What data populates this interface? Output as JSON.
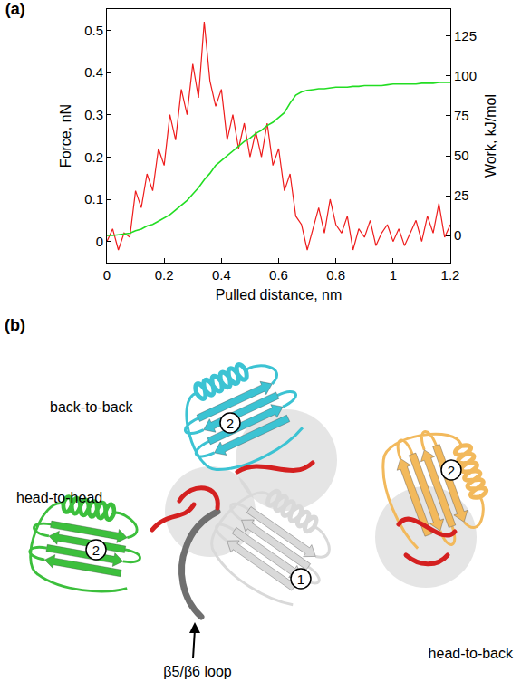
{
  "chart_data": {
    "type": "line",
    "title": "(a)",
    "xlabel": "Pulled distance, nm",
    "x": [
      0,
      0.02,
      0.04,
      0.06,
      0.08,
      0.1,
      0.12,
      0.14,
      0.16,
      0.18,
      0.2,
      0.22,
      0.24,
      0.26,
      0.28,
      0.3,
      0.32,
      0.34,
      0.36,
      0.38,
      0.4,
      0.42,
      0.44,
      0.46,
      0.48,
      0.5,
      0.52,
      0.54,
      0.56,
      0.58,
      0.6,
      0.62,
      0.64,
      0.66,
      0.68,
      0.7,
      0.72,
      0.74,
      0.76,
      0.78,
      0.8,
      0.82,
      0.84,
      0.86,
      0.88,
      0.9,
      0.92,
      0.94,
      0.96,
      0.98,
      1,
      1.02,
      1.04,
      1.06,
      1.08,
      1.1,
      1.12,
      1.14,
      1.16,
      1.18,
      1.2
    ],
    "xlim": [
      0,
      1.2
    ],
    "xticks": [
      0,
      0.2,
      0.4,
      0.6,
      0.8,
      1,
      1.2
    ],
    "ylim": [
      -0.05,
      0.55
    ],
    "yticks": [
      0,
      0.1,
      0.2,
      0.3,
      0.4,
      0.5
    ],
    "y2lim": [
      -17,
      142
    ],
    "y2ticks": [
      0,
      25,
      50,
      75,
      100,
      125
    ],
    "grid": false,
    "series": [
      {
        "name": "Force, nN",
        "color": "#ee1c1c",
        "axis": "y",
        "values": [
          0,
          0.03,
          -0.02,
          0.02,
          0.01,
          0.12,
          0.08,
          0.16,
          0.12,
          0.22,
          0.18,
          0.3,
          0.24,
          0.36,
          0.3,
          0.42,
          0.34,
          0.52,
          0.38,
          0.32,
          0.36,
          0.24,
          0.3,
          0.22,
          0.28,
          0.2,
          0.26,
          0.2,
          0.28,
          0.18,
          0.22,
          0.12,
          0.16,
          0.06,
          0.04,
          -0.02,
          0.03,
          0.08,
          0.02,
          0.1,
          0.04,
          0.02,
          0.06,
          -0.02,
          0.03,
          0.01,
          0.05,
          -0.01,
          0.02,
          0.04,
          0,
          0.03,
          -0.01,
          0.02,
          0.05,
          0,
          0.06,
          0.02,
          0.09,
          0.01,
          0.04
        ]
      },
      {
        "name": "Work, kJ/mol",
        "color": "#22dd22",
        "axis": "y2",
        "values": [
          0,
          0,
          0.5,
          1,
          1.5,
          3,
          4,
          6,
          7,
          9,
          11,
          13,
          16,
          19,
          22,
          26,
          30,
          35,
          39,
          44,
          47,
          50,
          53,
          56,
          59,
          61,
          64,
          66,
          69,
          71,
          74,
          77,
          83,
          88,
          90,
          91,
          91.5,
          92,
          92,
          92.5,
          93,
          93,
          93,
          93.5,
          93.5,
          94,
          94,
          94,
          94,
          94.5,
          95,
          95,
          95,
          95,
          95,
          95.5,
          95.5,
          95.5,
          96,
          96,
          96
        ]
      }
    ]
  },
  "diagram": {
    "panel_label": "(b)",
    "interfaces": [
      "back-to-back",
      "head-to-head",
      "head-to-back"
    ],
    "domains": [
      {
        "number": 1
      },
      {
        "number": 2
      },
      {
        "number": 2
      },
      {
        "number": 2
      }
    ],
    "loop_label": "β5/β6 loop"
  }
}
